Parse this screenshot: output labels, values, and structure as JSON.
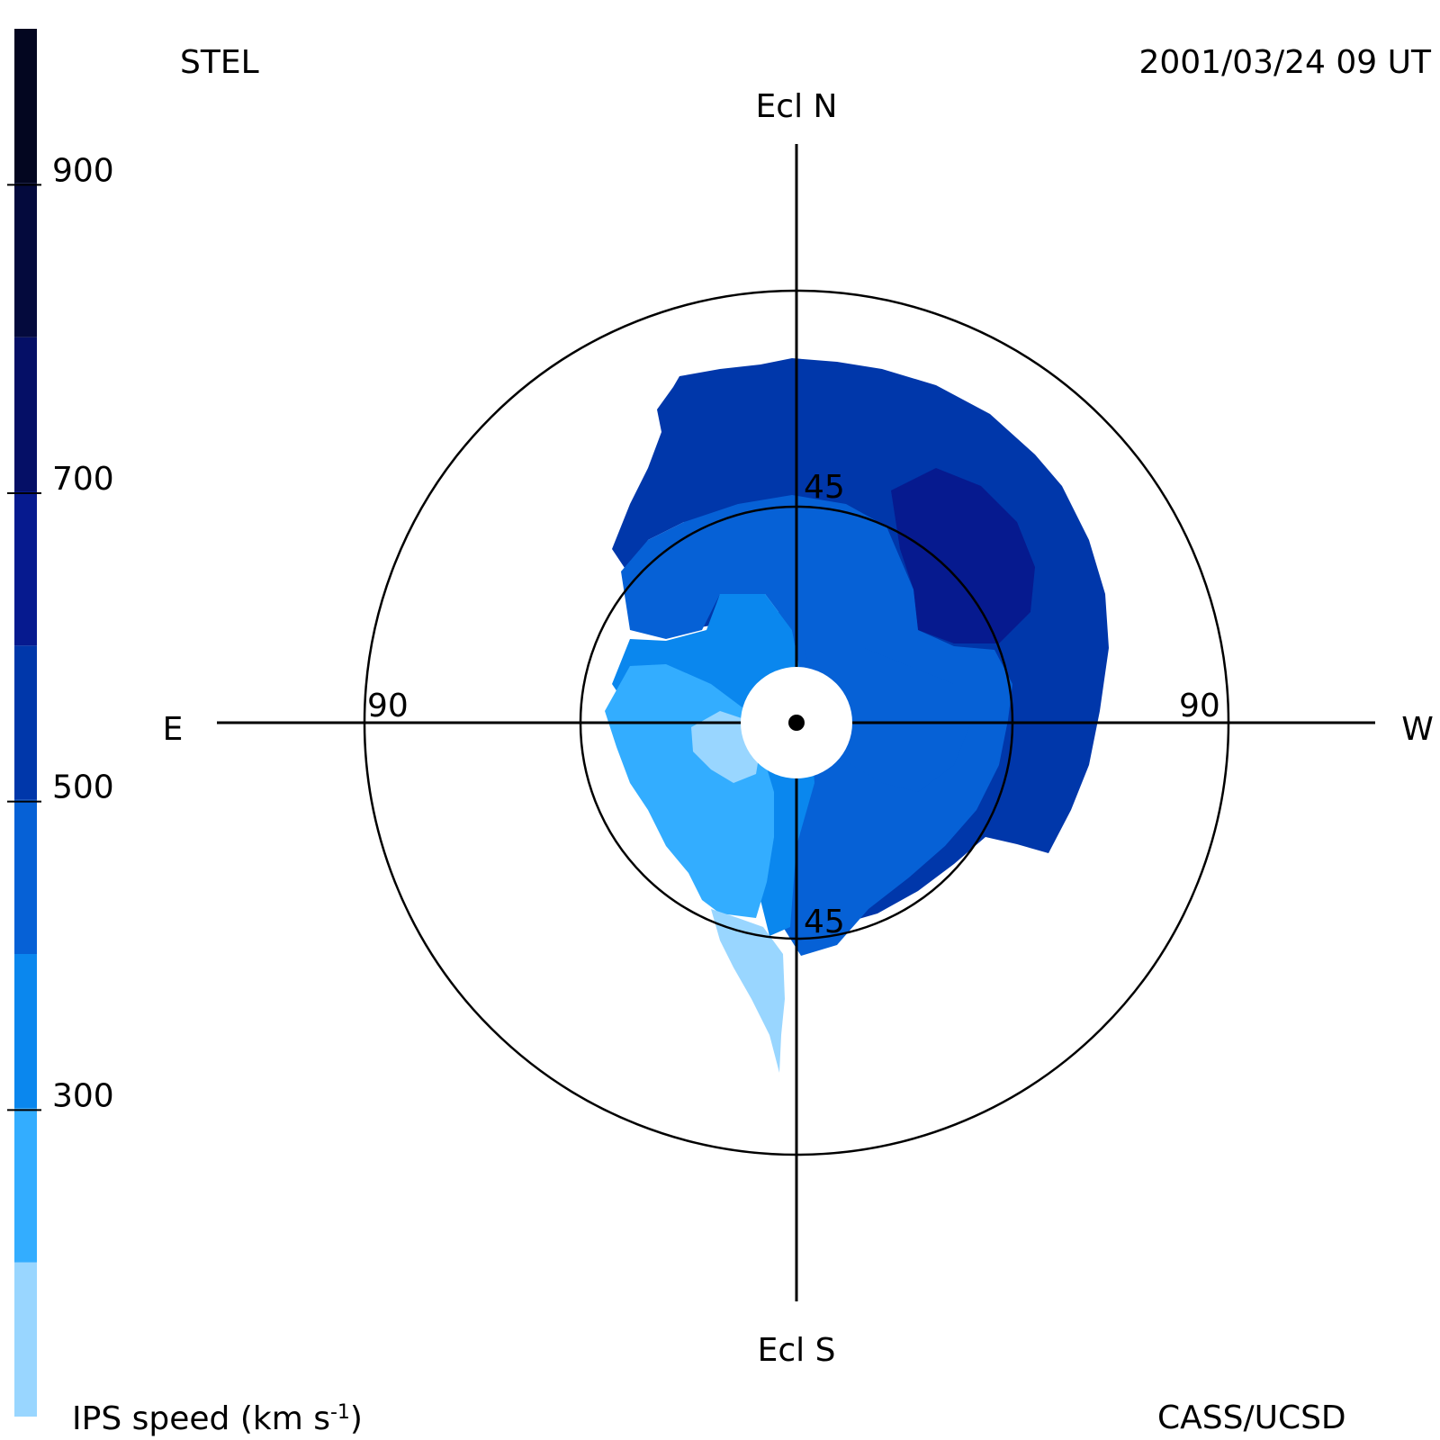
{
  "header": {
    "instrument": "STEL",
    "timestamp": "2001/03/24 09 UT"
  },
  "footer": {
    "credit": "CASS/UCSD"
  },
  "colorbar": {
    "label_main": "IPS speed (km s",
    "label_exp": "-1",
    "label_close": ")",
    "ticks": [
      {
        "value": 300,
        "label": "300"
      },
      {
        "value": 500,
        "label": "500"
      },
      {
        "value": 700,
        "label": "700"
      },
      {
        "value": 900,
        "label": "900"
      }
    ],
    "range": [
      100,
      1000
    ],
    "bands": [
      {
        "from": 100,
        "to": 200,
        "color": "#99d6ff"
      },
      {
        "from": 200,
        "to": 300,
        "color": "#33adff"
      },
      {
        "from": 300,
        "to": 400,
        "color": "#0a87ee"
      },
      {
        "from": 400,
        "to": 500,
        "color": "#0661d6"
      },
      {
        "from": 500,
        "to": 600,
        "color": "#0037aa"
      },
      {
        "from": 600,
        "to": 700,
        "color": "#061a8f"
      },
      {
        "from": 700,
        "to": 800,
        "color": "#050f66"
      },
      {
        "from": 800,
        "to": 900,
        "color": "#040a3d"
      },
      {
        "from": 900,
        "to": 1000,
        "color": "#030620"
      }
    ]
  },
  "chart_data": {
    "type": "heatmap",
    "projection": "polar sky map",
    "direction_labels": {
      "north": "Ecl N",
      "south": "Ecl S",
      "east": "E",
      "west": "W"
    },
    "elongation_rings": [
      {
        "value": 45,
        "labels": [
          "45",
          "45"
        ]
      },
      {
        "value": 90,
        "labels": [
          "90",
          "90"
        ]
      }
    ],
    "regions": [
      {
        "speed_range": [
          500,
          600
        ],
        "description_area": "northern and western outer field"
      },
      {
        "speed_range": [
          600,
          700
        ],
        "description_area": "north-west near 45 ring"
      },
      {
        "speed_range": [
          400,
          500
        ],
        "description_area": "inner north and south-west of center"
      },
      {
        "speed_range": [
          300,
          400
        ],
        "description_area": "around center"
      },
      {
        "speed_range": [
          200,
          300
        ],
        "description_area": "south-east of center"
      },
      {
        "speed_range": [
          100,
          200
        ],
        "description_area": "southern tail and patch left of center"
      }
    ],
    "colors": {
      "ring": "#000000",
      "axis": "#000000",
      "sun": "#000000",
      "occulter": "#ffffff"
    }
  }
}
